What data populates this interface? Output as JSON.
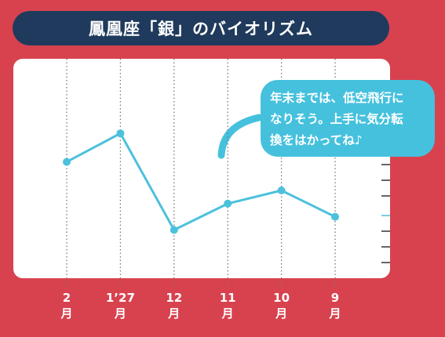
{
  "chart_data": {
    "type": "line",
    "title": "鳳凰座「銀」のバイオリズム",
    "annotation": "年末までは、低空飛行に\nなりそう。上手に気分転\n換をはかってね♪",
    "categories": [
      "2\n月",
      "1’27\n月",
      "12\n月",
      "11\n月",
      "10\n月",
      "9\n月"
    ],
    "values": [
      53,
      66,
      22,
      34,
      40,
      28
    ],
    "color": "#4cc1dc",
    "ylim": [
      0,
      100
    ]
  }
}
